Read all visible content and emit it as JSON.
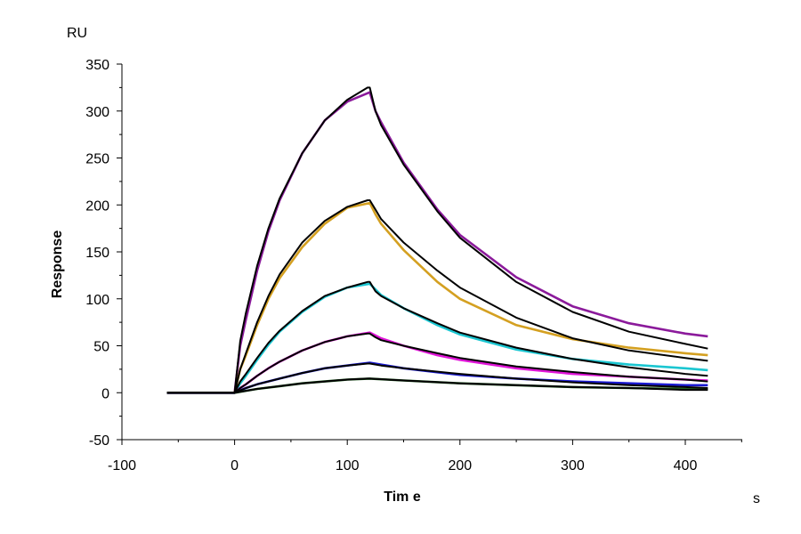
{
  "chart_data": {
    "type": "line",
    "xlabel": "Tim e",
    "ylabel": "Response",
    "x_unit": "s",
    "y_unit": "RU",
    "xlim": [
      -100,
      450
    ],
    "ylim": [
      -50,
      350
    ],
    "x_ticks": [
      -100,
      0,
      100,
      200,
      300,
      400
    ],
    "y_ticks": [
      -50,
      0,
      50,
      100,
      150,
      200,
      250,
      300,
      350
    ],
    "grid": false,
    "legend": "none",
    "series": [
      {
        "color": "#8B1A9B",
        "fit": false,
        "x": [
          -60,
          0,
          5,
          10,
          20,
          30,
          40,
          60,
          80,
          100,
          120,
          125,
          130,
          150,
          180,
          200,
          250,
          300,
          350,
          400,
          420
        ],
        "y": [
          0,
          0,
          50,
          78,
          130,
          172,
          205,
          255,
          290,
          310,
          320,
          300,
          288,
          245,
          195,
          168,
          123,
          92,
          74,
          63,
          60
        ]
      },
      {
        "color": "#000000",
        "fit": true,
        "x": [
          -60,
          0,
          5,
          10,
          20,
          30,
          40,
          60,
          80,
          100,
          118,
          120,
          125,
          130,
          150,
          180,
          200,
          250,
          300,
          350,
          400,
          420
        ],
        "y": [
          0,
          0,
          55,
          85,
          135,
          175,
          207,
          255,
          290,
          312,
          325,
          325,
          300,
          285,
          243,
          193,
          165,
          118,
          86,
          65,
          52,
          47
        ]
      },
      {
        "color": "#D4A021",
        "fit": false,
        "x": [
          -60,
          0,
          5,
          10,
          20,
          30,
          40,
          60,
          80,
          100,
          120,
          125,
          130,
          150,
          180,
          200,
          250,
          300,
          350,
          400,
          420
        ],
        "y": [
          0,
          0,
          25,
          40,
          72,
          100,
          122,
          155,
          180,
          197,
          202,
          190,
          180,
          152,
          118,
          100,
          72,
          57,
          48,
          42,
          40
        ]
      },
      {
        "color": "#000000",
        "fit": true,
        "x": [
          -60,
          0,
          5,
          10,
          20,
          30,
          40,
          60,
          80,
          100,
          118,
          120,
          125,
          130,
          150,
          180,
          200,
          250,
          300,
          350,
          400,
          420
        ],
        "y": [
          0,
          0,
          25,
          42,
          75,
          103,
          126,
          160,
          183,
          198,
          205,
          205,
          195,
          185,
          160,
          130,
          112,
          80,
          58,
          45,
          37,
          34
        ]
      },
      {
        "color": "#1BC6D1",
        "fit": false,
        "x": [
          -60,
          0,
          5,
          10,
          20,
          30,
          40,
          60,
          80,
          100,
          120,
          125,
          130,
          150,
          180,
          200,
          250,
          300,
          350,
          400,
          420
        ],
        "y": [
          0,
          0,
          10,
          18,
          35,
          51,
          65,
          86,
          102,
          112,
          116,
          110,
          104,
          90,
          72,
          62,
          46,
          36,
          30,
          26,
          24
        ]
      },
      {
        "color": "#000000",
        "fit": true,
        "x": [
          -60,
          0,
          5,
          10,
          20,
          30,
          40,
          60,
          80,
          100,
          118,
          120,
          125,
          130,
          150,
          180,
          200,
          250,
          300,
          350,
          400,
          420
        ],
        "y": [
          0,
          0,
          12,
          20,
          37,
          53,
          66,
          87,
          103,
          112,
          118,
          118,
          108,
          103,
          90,
          74,
          64,
          48,
          36,
          27,
          20,
          18
        ]
      },
      {
        "color": "#E015D8",
        "fit": false,
        "x": [
          -60,
          0,
          5,
          10,
          20,
          30,
          40,
          60,
          80,
          100,
          120,
          125,
          130,
          150,
          180,
          200,
          250,
          300,
          350,
          400,
          420
        ],
        "y": [
          0,
          0,
          5,
          9,
          18,
          26,
          33,
          45,
          54,
          60,
          64,
          61,
          58,
          50,
          40,
          35,
          26,
          20,
          17,
          14,
          13
        ]
      },
      {
        "color": "#000000",
        "fit": true,
        "x": [
          -60,
          0,
          5,
          10,
          20,
          30,
          40,
          60,
          80,
          100,
          118,
          120,
          125,
          130,
          150,
          180,
          200,
          250,
          300,
          350,
          400,
          420
        ],
        "y": [
          0,
          0,
          5,
          9,
          18,
          26,
          33,
          45,
          54,
          60,
          63,
          63,
          59,
          56,
          50,
          42,
          37,
          28,
          22,
          17,
          14,
          12
        ]
      },
      {
        "color": "#1A1AD0",
        "fit": false,
        "x": [
          -60,
          0,
          10,
          20,
          40,
          60,
          80,
          100,
          120,
          130,
          150,
          200,
          250,
          300,
          350,
          400,
          420
        ],
        "y": [
          0,
          0,
          5,
          9,
          15,
          21,
          26,
          29,
          32,
          30,
          26,
          19,
          15,
          12,
          10,
          8,
          8
        ]
      },
      {
        "color": "#000000",
        "fit": true,
        "x": [
          -60,
          0,
          10,
          20,
          40,
          60,
          80,
          100,
          118,
          120,
          130,
          150,
          200,
          250,
          300,
          350,
          400,
          420
        ],
        "y": [
          0,
          0,
          5,
          9,
          15,
          21,
          26,
          29,
          31,
          31,
          29,
          26,
          20,
          15,
          11,
          8,
          6,
          5
        ]
      },
      {
        "color": "#1E5E1E",
        "fit": false,
        "x": [
          -60,
          0,
          10,
          20,
          40,
          60,
          80,
          100,
          120,
          150,
          200,
          250,
          300,
          350,
          400,
          420
        ],
        "y": [
          0,
          0,
          2,
          4,
          7,
          10,
          12,
          14,
          15,
          13,
          10,
          8,
          6,
          5,
          4,
          4
        ]
      },
      {
        "color": "#000000",
        "fit": true,
        "x": [
          -60,
          0,
          10,
          20,
          40,
          60,
          80,
          100,
          118,
          120,
          150,
          200,
          250,
          300,
          350,
          400,
          420
        ],
        "y": [
          0,
          0,
          2,
          4,
          7,
          10,
          12,
          14,
          15,
          15,
          13,
          10,
          8,
          6,
          5,
          3,
          3
        ]
      }
    ]
  }
}
